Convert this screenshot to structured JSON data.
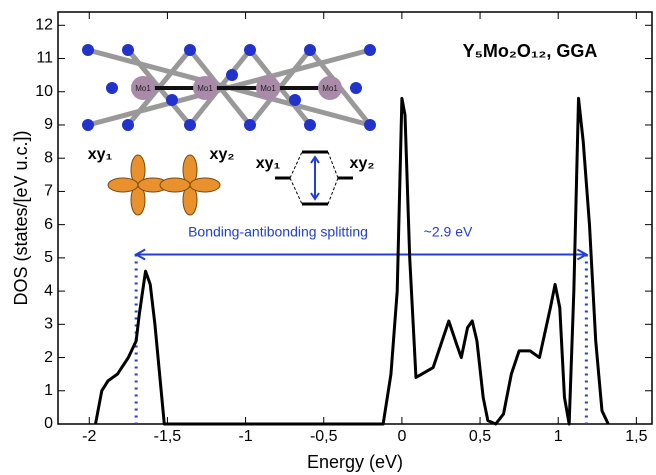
{
  "chart_data": {
    "type": "line",
    "title": "Y₅Mo₂O₁₂, GGA",
    "x_label": "Energy (eV)",
    "y_label": "DOS (states/[eV u.c.])",
    "annotation": "Bonding-antibonding splitting",
    "annotation_value": "~2.9 eV",
    "arrow": {
      "x": [
        -1.7,
        1.18
      ],
      "y": 5.1,
      "color": "#1f3fd8"
    },
    "orbital_labels": [
      "xy₁",
      "xy₂"
    ],
    "level_labels": [
      "xy₁",
      "xy₂"
    ],
    "structure_labels": [
      "Mo1",
      "Mo1",
      "Mo1",
      "Mo1"
    ],
    "x": [
      -1.96,
      -1.92,
      -1.88,
      -1.82,
      -1.75,
      -1.7,
      -1.68,
      -1.64,
      -1.61,
      -1.58,
      -1.55,
      -1.52,
      -0.12,
      -0.07,
      -0.03,
      0,
      0.02,
      0.05,
      0.09,
      0.2,
      0.25,
      0.3,
      0.35,
      0.38,
      0.42,
      0.45,
      0.48,
      0.52,
      0.55,
      0.6,
      0.65,
      0.7,
      0.75,
      0.82,
      0.88,
      0.95,
      0.98,
      1.01,
      1.04,
      1.07,
      1.1,
      1.13,
      1.16,
      1.2,
      1.24,
      1.28,
      1.32
    ],
    "series": [
      {
        "color": "#000000",
        "values": [
          0,
          1.0,
          1.3,
          1.5,
          2.0,
          2.5,
          3.3,
          4.6,
          4.2,
          3.0,
          1.5,
          0,
          0,
          1.5,
          4,
          9.8,
          9.3,
          5,
          1.4,
          1.7,
          2.4,
          3.1,
          2.4,
          2.0,
          2.9,
          3.1,
          2.5,
          0.8,
          0.1,
          0,
          0.3,
          1.5,
          2.2,
          2.2,
          2.0,
          3.5,
          4.2,
          3.5,
          0.8,
          0,
          4,
          9.8,
          8.5,
          6,
          2.5,
          0.4,
          0
        ]
      }
    ],
    "xlim": [
      -2.2,
      1.6
    ],
    "ylim": [
      0,
      12.4
    ],
    "xticks": [
      -2,
      {
        "value": -1.5,
        "label": "-1,5"
      },
      -1,
      {
        "value": -0.5,
        "label": "-0,5"
      },
      0,
      {
        "value": 0.5,
        "label": "0,5"
      },
      1,
      {
        "value": 1.5,
        "label": "1,5"
      }
    ],
    "yticks": [
      0,
      1,
      2,
      3,
      4,
      5,
      6,
      7,
      8,
      9,
      10,
      11,
      12
    ]
  }
}
